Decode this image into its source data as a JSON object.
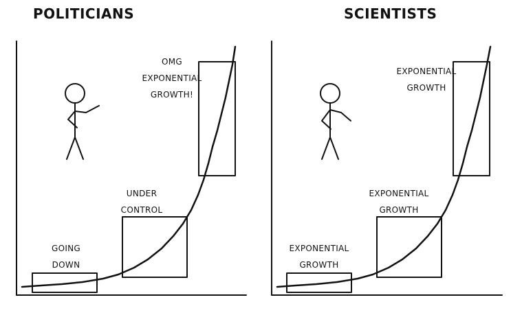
{
  "panels": [
    {
      "title": "POLITICIANS",
      "labels": {
        "small": [
          "GOING",
          "DOWN"
        ],
        "medium": [
          "UNDER",
          "CONTROL"
        ],
        "large": [
          "OMG",
          "EXPONENTIAL",
          "GROWTH!"
        ]
      }
    },
    {
      "title": "SCIENTISTS",
      "labels": {
        "small": [
          "EXPONENTIAL",
          "GROWTH"
        ],
        "medium": [
          "EXPONENTIAL",
          "GROWTH"
        ],
        "large": [
          "EXPONENTIAL",
          "GROWTH"
        ]
      }
    }
  ],
  "colors": {
    "ink": "#111111",
    "background": "#ffffff"
  }
}
